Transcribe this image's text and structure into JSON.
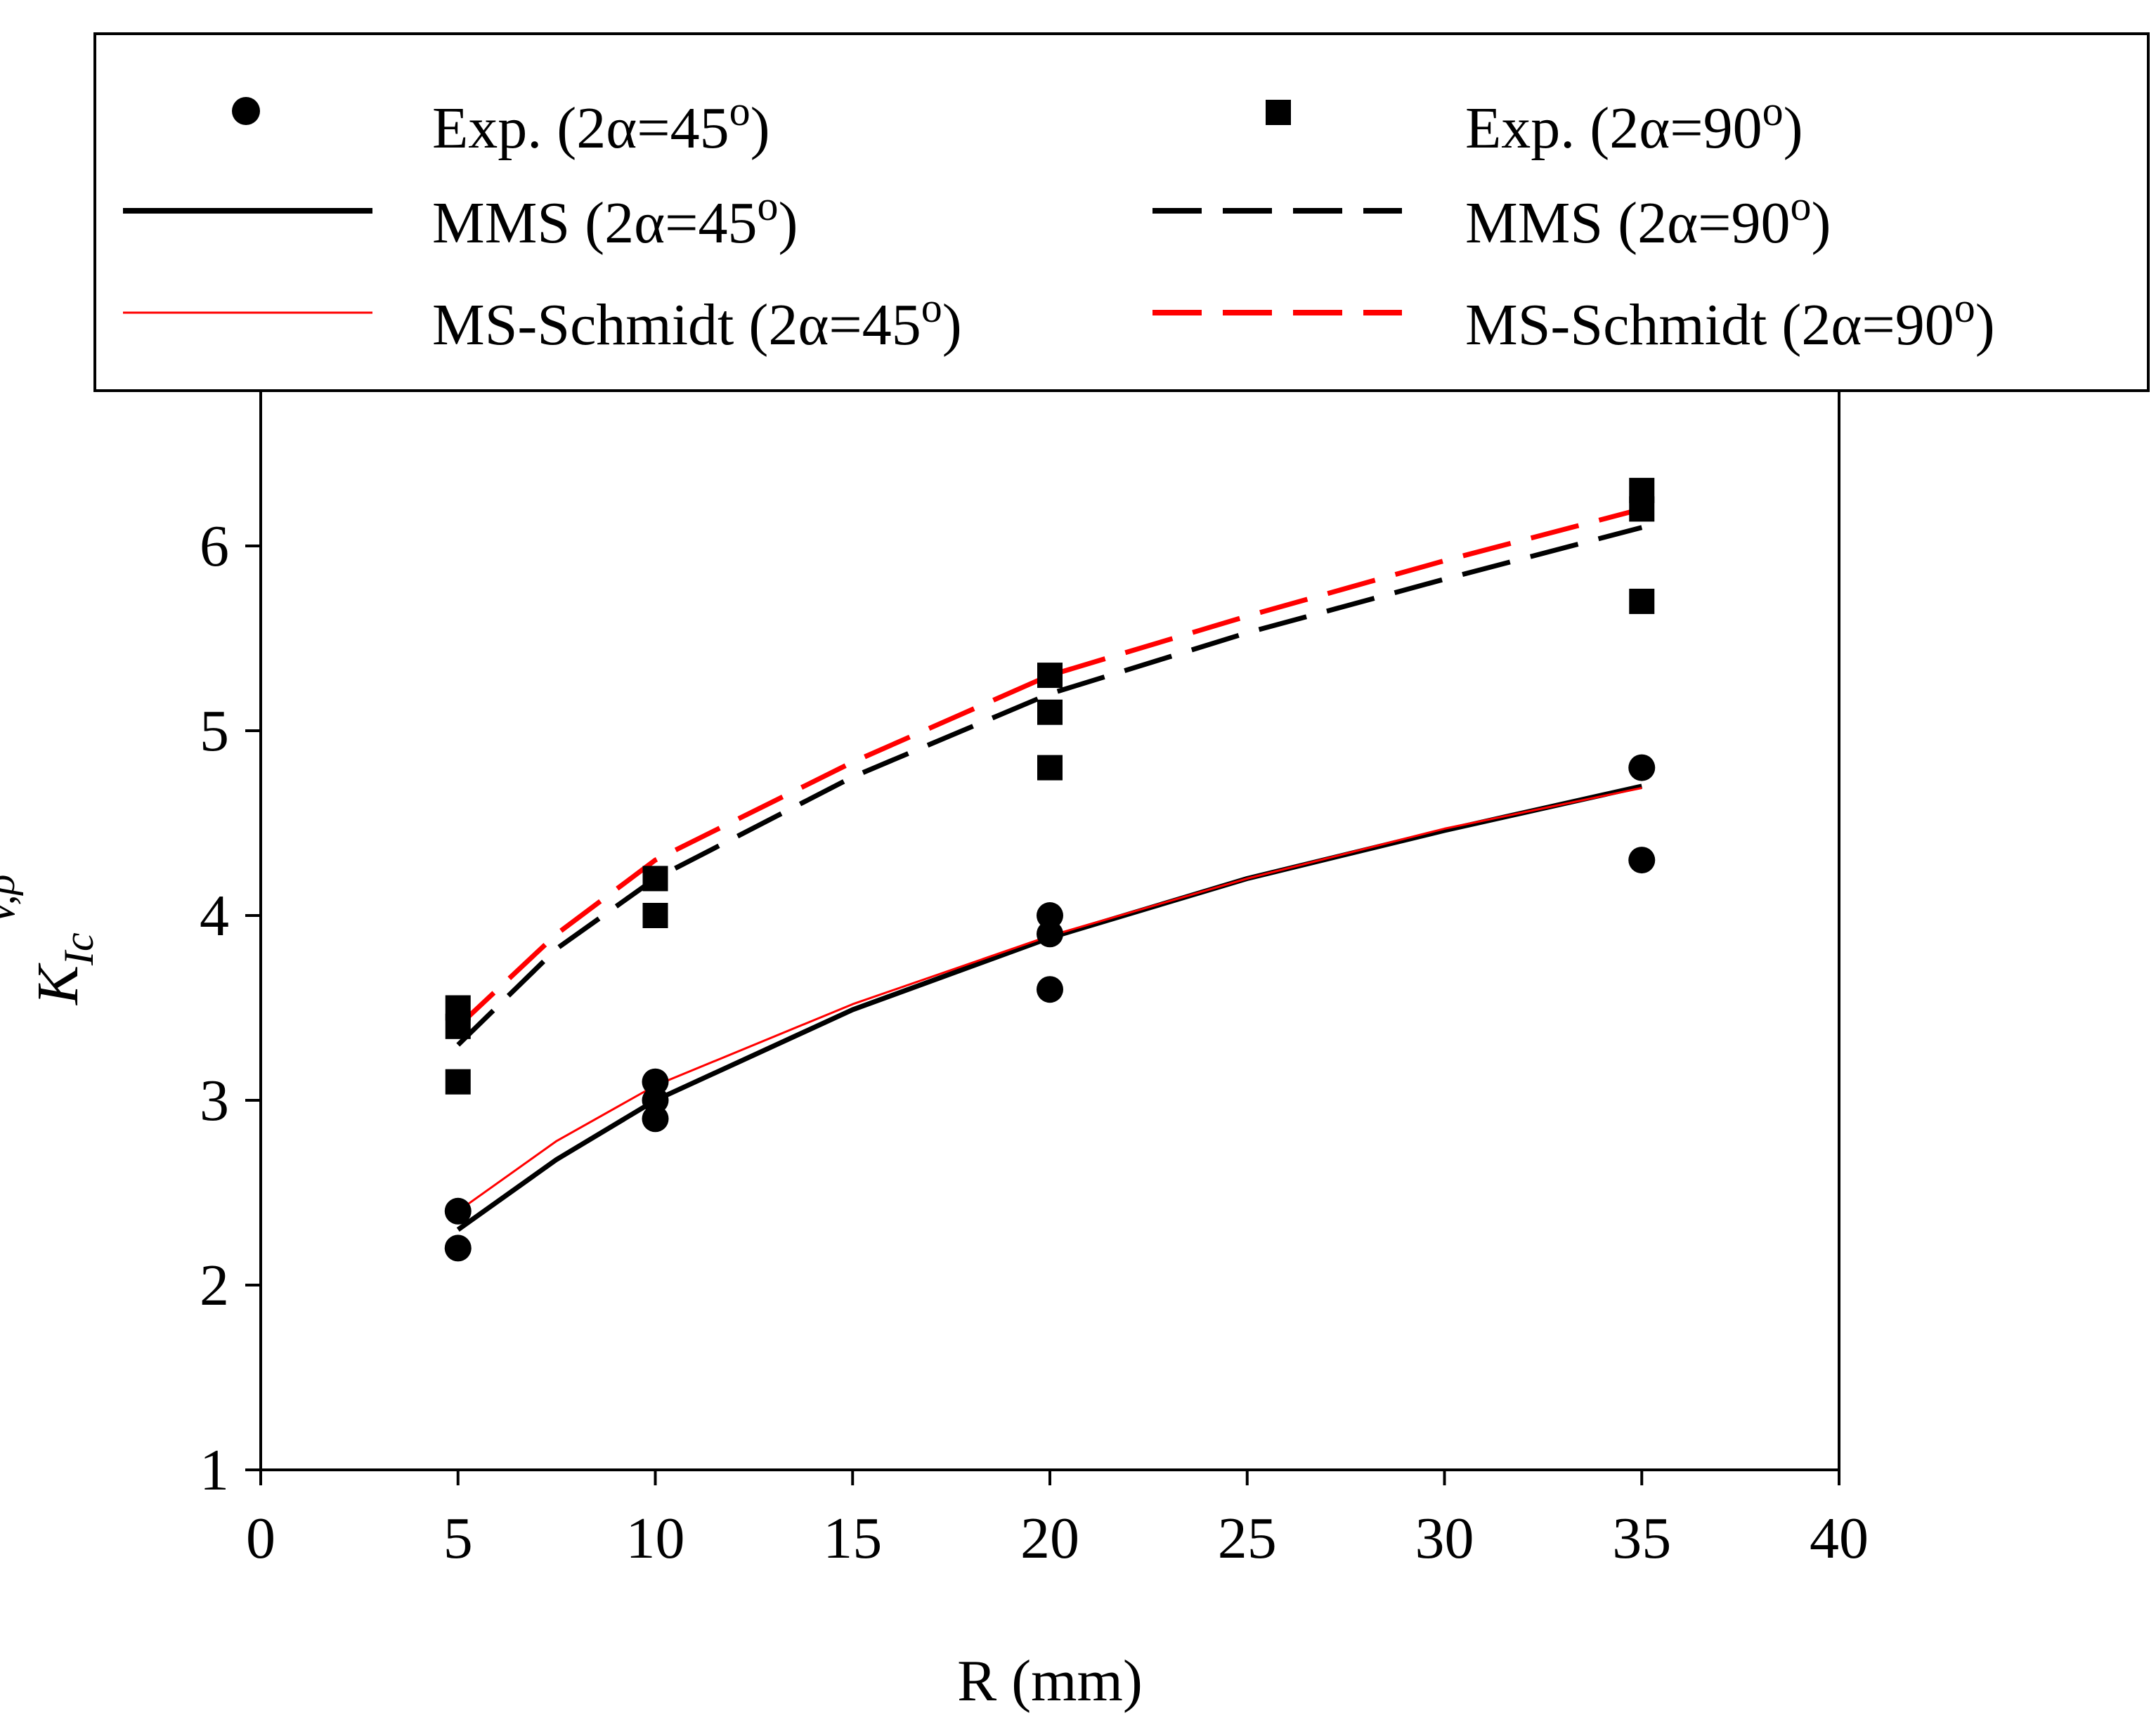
{
  "chart_data": {
    "type": "scatter",
    "xlabel": "R (mm)",
    "ylabel": {
      "main": "K",
      "sub": "Ic",
      "sup": "V,ρ"
    },
    "xlim": [
      0,
      40
    ],
    "ylim": [
      1,
      6.5
    ],
    "xticks": [
      "0",
      "5",
      "10",
      "15",
      "20",
      "25",
      "30",
      "35",
      "40"
    ],
    "yticks": [
      "1",
      "2",
      "3",
      "4",
      "5",
      "6"
    ],
    "legend": {
      "position": "top",
      "entries": [
        {
          "key": "exp45",
          "label": "Exp. (2α=45",
          "sup": "o",
          "tail": ")"
        },
        {
          "key": "exp90",
          "label": "Exp. (2α=90",
          "sup": "o",
          "tail": ")"
        },
        {
          "key": "mms45",
          "label": "MMS (2α=45",
          "sup": "o",
          "tail": ")"
        },
        {
          "key": "mms90",
          "label": "MMS (2α=90",
          "sup": "o",
          "tail": ")"
        },
        {
          "key": "msch45",
          "label": "MS-Schmidt (2α=45",
          "sup": "o",
          "tail": ")"
        },
        {
          "key": "msch90",
          "label": "MS-Schmidt (2α=90",
          "sup": "o",
          "tail": ")"
        }
      ]
    },
    "colors": {
      "black": "#000000",
      "red": "#ff0000"
    },
    "series": [
      {
        "key": "exp45",
        "name": "Exp. (2α=45o)",
        "kind": "marker",
        "marker": "circle",
        "color": "#000000",
        "points": [
          [
            5,
            2.4
          ],
          [
            5,
            2.2
          ],
          [
            10,
            3.1
          ],
          [
            10,
            3.0
          ],
          [
            10,
            2.9
          ],
          [
            20,
            4.0
          ],
          [
            20,
            3.9
          ],
          [
            20,
            3.6
          ],
          [
            35,
            4.8
          ],
          [
            35,
            4.3
          ]
        ]
      },
      {
        "key": "exp90",
        "name": "Exp. (2α=90o)",
        "kind": "marker",
        "marker": "square",
        "color": "#000000",
        "points": [
          [
            5,
            3.5
          ],
          [
            5,
            3.4
          ],
          [
            5,
            3.1
          ],
          [
            10,
            4.2
          ],
          [
            10,
            4.0
          ],
          [
            20,
            5.3
          ],
          [
            20,
            5.1
          ],
          [
            20,
            4.8
          ],
          [
            35,
            6.3
          ],
          [
            35,
            6.2
          ],
          [
            35,
            5.7
          ]
        ]
      },
      {
        "key": "mms45",
        "name": "MMS (2α=45o)",
        "kind": "line",
        "dash": "solid",
        "width": "thick",
        "color": "#000000",
        "x": [
          5,
          7.5,
          10,
          15,
          20,
          25,
          30,
          35
        ],
        "y": [
          2.3,
          2.68,
          3.0,
          3.49,
          3.88,
          4.2,
          4.46,
          4.7
        ]
      },
      {
        "key": "mms90",
        "name": "MMS (2α=90o)",
        "kind": "line",
        "dash": "dashed",
        "width": "thick",
        "color": "#000000",
        "x": [
          5,
          7.5,
          10,
          15,
          20,
          25,
          30,
          35
        ],
        "y": [
          3.3,
          3.82,
          4.2,
          4.75,
          5.2,
          5.53,
          5.82,
          6.1
        ]
      },
      {
        "key": "msch45",
        "name": "MS-Schmidt (2α=45o)",
        "kind": "line",
        "dash": "solid",
        "width": "thin",
        "color": "#ff0000",
        "x": [
          5,
          7.5,
          10,
          15,
          20,
          25,
          30,
          35
        ],
        "y": [
          2.4,
          2.78,
          3.08,
          3.52,
          3.89,
          4.2,
          4.47,
          4.69
        ]
      },
      {
        "key": "msch90",
        "name": "MS-Schmidt (2α=90o)",
        "kind": "line",
        "dash": "dashed",
        "width": "thick",
        "color": "#ff0000",
        "x": [
          5,
          7.5,
          10,
          15,
          20,
          25,
          30,
          35
        ],
        "y": [
          3.4,
          3.9,
          4.3,
          4.83,
          5.3,
          5.62,
          5.92,
          6.2
        ]
      }
    ]
  }
}
